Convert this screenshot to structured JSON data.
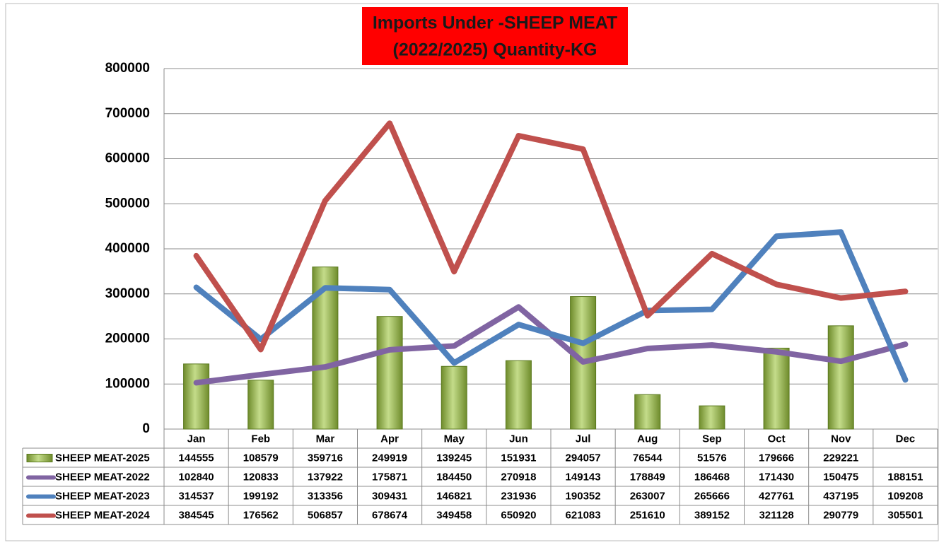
{
  "chart_data": {
    "type": "combo",
    "title": [
      "Imports Under -SHEEP MEAT",
      "(2022/2025)  Quantity-KG"
    ],
    "categories": [
      "Jan",
      "Feb",
      "Mar",
      "Apr",
      "May",
      "Jun",
      "Jul",
      "Aug",
      "Sep",
      "Oct",
      "Nov",
      "Dec"
    ],
    "ylim": [
      0,
      800000
    ],
    "yticks": [
      0,
      100000,
      200000,
      300000,
      400000,
      500000,
      600000,
      700000,
      800000
    ],
    "grid": true,
    "series": [
      {
        "name": "SHEEP MEAT-2025",
        "type": "bar",
        "color": "#9bbb59",
        "values": [
          144555,
          108579,
          359716,
          249919,
          139245,
          151931,
          294057,
          76544,
          51576,
          179666,
          229221,
          null
        ]
      },
      {
        "name": "SHEEP MEAT-2022",
        "type": "line",
        "color": "#8064a2",
        "values": [
          102840,
          120833,
          137922,
          175871,
          184450,
          270918,
          149143,
          178849,
          186468,
          171430,
          150475,
          188151
        ]
      },
      {
        "name": "SHEEP MEAT-2023",
        "type": "line",
        "color": "#4f81bd",
        "values": [
          314537,
          199192,
          313356,
          309431,
          146821,
          231936,
          190352,
          263007,
          265666,
          427761,
          437195,
          109208
        ]
      },
      {
        "name": "SHEEP MEAT-2024",
        "type": "line",
        "color": "#c0504d",
        "values": [
          384545,
          176562,
          506857,
          678674,
          349458,
          650920,
          621083,
          251610,
          389152,
          321128,
          290779,
          305501
        ]
      }
    ]
  }
}
